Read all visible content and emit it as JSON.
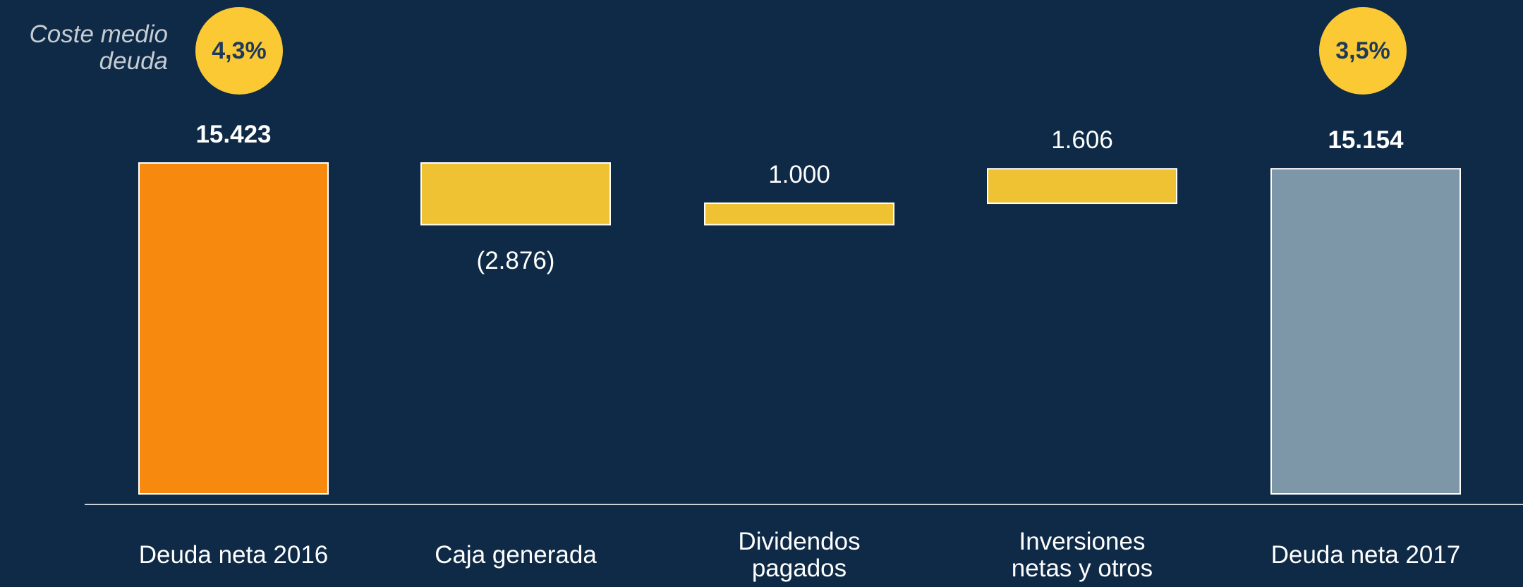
{
  "chart_data": {
    "type": "waterfall",
    "categories": [
      "Deuda neta 2016",
      "Caja generada",
      "Dividendos\npagados",
      "Inversiones\nnetas y otros",
      "Deuda neta 2017"
    ],
    "values": [
      15423,
      -2876,
      1000,
      1606,
      15154
    ],
    "value_labels": [
      "15.423",
      "(2.876)",
      "1.000",
      "1.606",
      "15.154"
    ],
    "measure": [
      "total",
      "relative",
      "relative",
      "relative",
      "total"
    ],
    "colors": [
      "#f7890f",
      "#eec232",
      "#eec232",
      "#eec232",
      "#7e97a8"
    ],
    "cost_of_debt": {
      "label": "Coste medio deuda",
      "values": [
        4.3,
        null,
        null,
        null,
        3.5
      ],
      "value_labels": [
        "4,3%",
        null,
        null,
        null,
        "3,5%"
      ],
      "color": "#fbc934"
    }
  }
}
